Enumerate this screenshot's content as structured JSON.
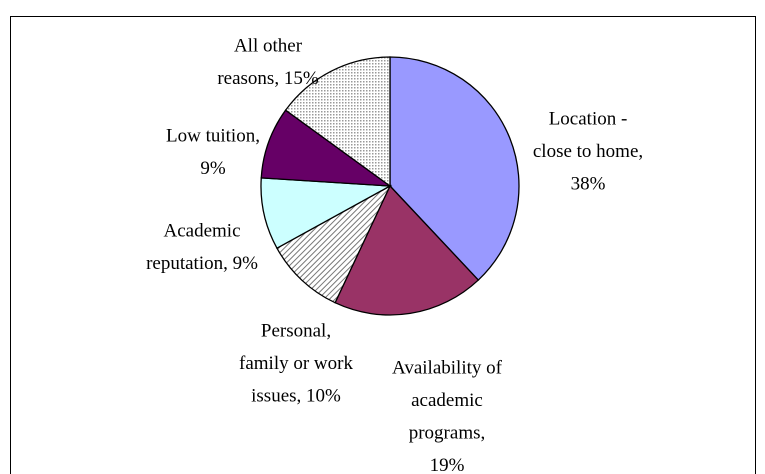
{
  "chart_data": {
    "type": "pie",
    "values": [
      38,
      19,
      10,
      9,
      9,
      15
    ],
    "value_labels": [
      [
        "Location -",
        "close to home,",
        "38%"
      ],
      [
        "Availability of",
        "academic",
        "programs,",
        "19%"
      ],
      [
        "Personal,",
        "family or work",
        "issues, 10%"
      ],
      [
        "Academic",
        "reputation, 9%"
      ],
      [
        "Low tuition,",
        "9%"
      ],
      [
        "All other",
        "reasons, 15%"
      ]
    ],
    "colors": [
      "#9999ff",
      "#993366",
      "#c0c0c0",
      "#ccffff",
      "#660066",
      "#c0c0c0"
    ],
    "patterns": [
      "solid",
      "solid",
      "hatch",
      "solid",
      "solid",
      "dots"
    ]
  }
}
